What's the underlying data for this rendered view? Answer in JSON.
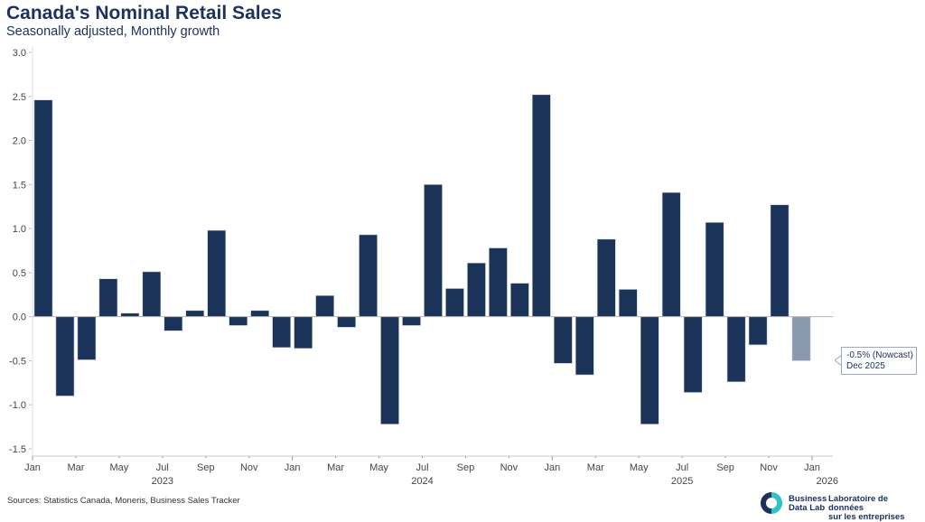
{
  "header": {
    "title": "Canada's Nominal Retail Sales",
    "subtitle": "Seasonally adjusted, Monthly growth"
  },
  "footer": {
    "source": "Sources: Statistics Canada, Moneris, Business Sales Tracker",
    "logo_en_line1": "Business",
    "logo_en_line2": "Data Lab",
    "logo_fr_line1": "Laboratoire de données",
    "logo_fr_line2": "sur les entreprises"
  },
  "callout": {
    "line1": "-0.5% (Nowcast)",
    "line2": "Dec 2025"
  },
  "colors": {
    "bar": "#1b3358",
    "nowcast_bar": "#8a99ae",
    "title": "#1e3260",
    "logo_teal": "#2ec4c6",
    "logo_navy": "#1b3358"
  },
  "chart_data": {
    "type": "bar",
    "title": "Canada's Nominal Retail Sales",
    "subtitle": "Seasonally adjusted, Monthly growth",
    "xlabel": "",
    "ylabel": "",
    "ylim": [
      -1.5,
      3.0
    ],
    "yticks": [
      "3.0",
      "2.5",
      "2.0",
      "1.5",
      "1.0",
      "0.5",
      "0.0",
      "-0.5",
      "-1.0",
      "-1.5"
    ],
    "ytick_values": [
      3.0,
      2.5,
      2.0,
      1.5,
      1.0,
      0.5,
      0.0,
      -0.5,
      -1.0,
      -1.5
    ],
    "xticks": [
      "Jan",
      "Mar",
      "May",
      "Jul",
      "Sep",
      "Nov",
      "Jan",
      "Mar",
      "May",
      "Jul",
      "Sep",
      "Nov",
      "Jan",
      "Mar",
      "May",
      "Jul",
      "Sep",
      "Nov",
      "Jan"
    ],
    "xtick_month_index": [
      0,
      2,
      4,
      6,
      8,
      10,
      12,
      14,
      16,
      18,
      20,
      22,
      24,
      26,
      28,
      30,
      32,
      34,
      36
    ],
    "year_labels": [
      {
        "label": "2023",
        "month_index": 6
      },
      {
        "label": "2024",
        "month_index": 18
      },
      {
        "label": "2025",
        "month_index": 30
      },
      {
        "label": "2026",
        "month_index": 36.7
      }
    ],
    "categories": [
      "Jan 2023",
      "Feb 2023",
      "Mar 2023",
      "Apr 2023",
      "May 2023",
      "Jun 2023",
      "Jul 2023",
      "Aug 2023",
      "Sep 2023",
      "Oct 2023",
      "Nov 2023",
      "Dec 2023",
      "Jan 2024",
      "Feb 2024",
      "Mar 2024",
      "Apr 2024",
      "May 2024",
      "Jun 2024",
      "Jul 2024",
      "Aug 2024",
      "Sep 2024",
      "Oct 2024",
      "Nov 2024",
      "Dec 2024",
      "Jan 2025",
      "Feb 2025",
      "Mar 2025",
      "Apr 2025",
      "May 2025",
      "Jun 2025",
      "Jul 2025",
      "Aug 2025",
      "Sep 2025",
      "Oct 2025",
      "Nov 2025",
      "Dec 2025"
    ],
    "values": [
      2.46,
      -0.9,
      -0.49,
      0.43,
      0.04,
      0.51,
      -0.16,
      0.07,
      0.98,
      -0.1,
      0.07,
      -0.35,
      -0.36,
      0.24,
      -0.12,
      0.93,
      -1.22,
      -0.1,
      1.5,
      0.32,
      0.61,
      0.78,
      0.38,
      2.52,
      -0.53,
      -0.66,
      0.88,
      0.31,
      -1.22,
      1.41,
      -0.86,
      1.07,
      -0.74,
      -0.32,
      1.27,
      -0.5
    ],
    "nowcast": [
      false,
      false,
      false,
      false,
      false,
      false,
      false,
      false,
      false,
      false,
      false,
      false,
      false,
      false,
      false,
      false,
      false,
      false,
      false,
      false,
      false,
      false,
      false,
      false,
      false,
      false,
      false,
      false,
      false,
      false,
      false,
      false,
      false,
      false,
      false,
      true
    ],
    "grid": false,
    "legend": "none",
    "annotation": "-0.5% (Nowcast) Dec 2025"
  }
}
